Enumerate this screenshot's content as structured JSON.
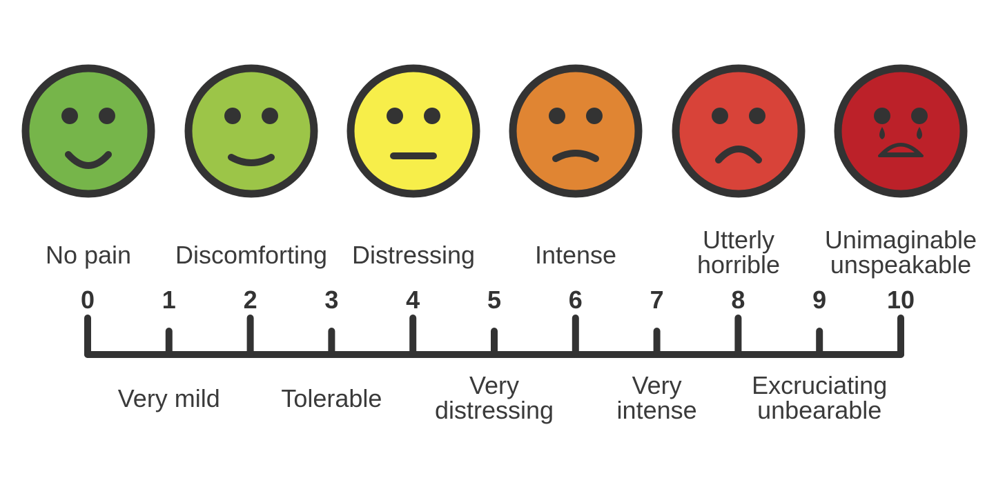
{
  "faces": [
    {
      "level": 0,
      "color": "#76b54a",
      "mouth": "smile-wide",
      "icon": "smiling-face-icon"
    },
    {
      "level": 2,
      "color": "#9cc548",
      "mouth": "smile-slight",
      "icon": "slight-smile-face-icon"
    },
    {
      "level": 4,
      "color": "#f7ee4a",
      "mouth": "flat",
      "icon": "neutral-face-icon"
    },
    {
      "level": 6,
      "color": "#e08533",
      "mouth": "frown-slight",
      "icon": "slight-frown-face-icon"
    },
    {
      "level": 8,
      "color": "#d84339",
      "mouth": "frown",
      "icon": "frowning-face-icon"
    },
    {
      "level": 10,
      "color": "#bc2129",
      "mouth": "cry",
      "icon": "crying-face-icon"
    }
  ],
  "top_labels": [
    {
      "level": 0,
      "text": "No pain"
    },
    {
      "level": 2,
      "text": "Discomforting"
    },
    {
      "level": 4,
      "text": "Distressing"
    },
    {
      "level": 6,
      "text": "Intense"
    },
    {
      "level": 8,
      "text": "Utterly\nhorrible"
    },
    {
      "level": 10,
      "text": "Unimaginable\nunspeakable"
    }
  ],
  "numbers": [
    "0",
    "1",
    "2",
    "3",
    "4",
    "5",
    "6",
    "7",
    "8",
    "9",
    "10"
  ],
  "bottom_labels": [
    {
      "level": 1,
      "text": "Very mild"
    },
    {
      "level": 3,
      "text": "Tolerable"
    },
    {
      "level": 5,
      "text": "Very\ndistressing"
    },
    {
      "level": 7,
      "text": "Very\nintense"
    },
    {
      "level": 9,
      "text": "Excruciating\nunbearable"
    }
  ],
  "colors": {
    "ink": "#333333",
    "text": "#3a3a3a",
    "axis": "#333333"
  }
}
